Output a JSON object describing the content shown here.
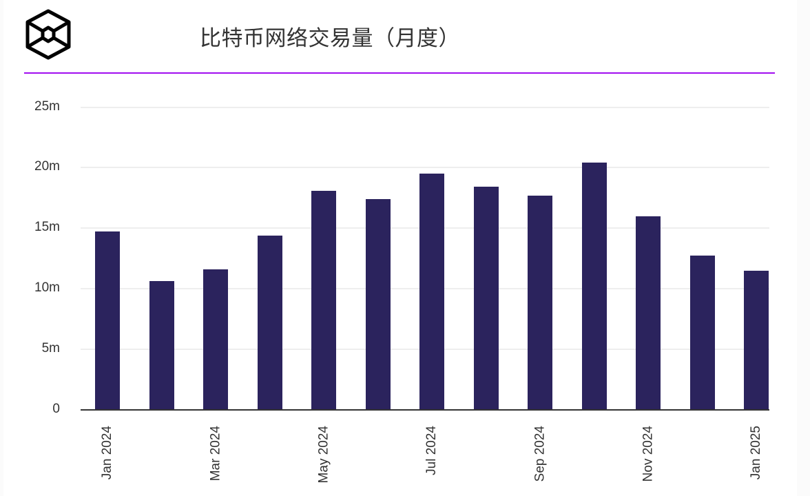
{
  "header": {
    "logo": "hexagon-cube-logo-icon",
    "title": "比特币网络交易量（月度）",
    "accent_color": "#a10cf0"
  },
  "colors": {
    "bar": "#2b235d",
    "gridline": "#eeeeee",
    "axis": "#333333",
    "text": "#333333"
  },
  "chart_data": {
    "type": "bar",
    "title": "比特币网络交易量（月度）",
    "xlabel": "",
    "ylabel": "",
    "categories": [
      "Jan 2024",
      "Feb 2024",
      "Mar 2024",
      "Apr 2024",
      "May 2024",
      "Jun 2024",
      "Jul 2024",
      "Aug 2024",
      "Sep 2024",
      "Oct 2024",
      "Nov 2024",
      "Dec 2024",
      "Jan 2025"
    ],
    "values": [
      14.7,
      10.6,
      11.6,
      14.4,
      18.1,
      17.4,
      19.5,
      18.4,
      17.7,
      20.4,
      16.0,
      12.7,
      11.5
    ],
    "unit": "m",
    "ylim": [
      0,
      25
    ],
    "yticks": [
      0,
      5,
      10,
      15,
      20,
      25
    ],
    "ytick_labels": [
      "0",
      "5m",
      "10m",
      "15m",
      "20m",
      "25m"
    ],
    "xtick_labels_shown": [
      "Jan 2024",
      "Mar 2024",
      "May 2024",
      "Jul 2024",
      "Sep 2024",
      "Nov 2024",
      "Jan 2025"
    ],
    "grid": true,
    "legend": null
  }
}
